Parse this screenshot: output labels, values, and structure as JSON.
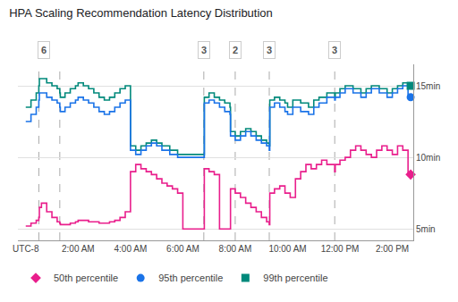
{
  "chart_data": {
    "type": "step",
    "title": "HPA Scaling Recommendation Latency Distribution",
    "xlim": [
      -0.3,
      14.8
    ],
    "xticks": [
      {
        "value": 0,
        "label": "UTC-8"
      },
      {
        "value": 2,
        "label": "2:00 AM"
      },
      {
        "value": 4,
        "label": "4:00 AM"
      },
      {
        "value": 6,
        "label": "6:00 AM"
      },
      {
        "value": 8,
        "label": "8:00 AM"
      },
      {
        "value": 10,
        "label": "10:00 AM"
      },
      {
        "value": 12,
        "label": "12:00 PM"
      },
      {
        "value": 14,
        "label": "2:00 PM"
      }
    ],
    "ylim": [
      4.2,
      16.5
    ],
    "yticks": [
      {
        "value": 5,
        "label": "5min"
      },
      {
        "value": 10,
        "label": "10min"
      },
      {
        "value": 15,
        "label": "15min"
      }
    ],
    "grid": "y",
    "legend": "bottom",
    "vlines": [
      0.5,
      1.3,
      6.8,
      8.0,
      9.3,
      11.8
    ],
    "annotations": [
      {
        "x": 0.7,
        "text": "6"
      },
      {
        "x": 6.8,
        "text": "3"
      },
      {
        "x": 8.0,
        "text": "2"
      },
      {
        "x": 9.3,
        "text": "3"
      },
      {
        "x": 11.8,
        "text": "3"
      }
    ],
    "series": [
      {
        "name": "99th percentile",
        "color": "#00897b",
        "marker": "square",
        "end_marker": {
          "x": 14.7,
          "y": 15.0
        },
        "x": [
          0.0,
          0.2,
          0.4,
          0.5,
          0.52,
          0.6,
          0.8,
          1.0,
          1.2,
          1.3,
          1.32,
          1.5,
          1.7,
          1.9,
          2.0,
          2.2,
          2.4,
          2.6,
          2.8,
          3.0,
          3.2,
          3.4,
          3.6,
          3.8,
          4.0,
          4.2,
          4.4,
          4.6,
          4.8,
          5.0,
          5.2,
          5.5,
          5.8,
          6.0,
          6.2,
          6.4,
          6.6,
          6.8,
          6.82,
          7.0,
          7.2,
          7.4,
          7.6,
          7.8,
          7.82,
          8.0,
          8.2,
          8.4,
          8.6,
          8.8,
          9.0,
          9.2,
          9.3,
          9.32,
          9.5,
          9.7,
          9.9,
          10.0,
          10.2,
          10.5,
          10.8,
          11.0,
          11.2,
          11.5,
          11.8,
          11.82,
          12.0,
          12.2,
          12.5,
          12.8,
          13.0,
          13.2,
          13.5,
          13.8,
          14.0,
          14.2,
          14.4,
          14.6
        ],
        "values": [
          13.5,
          14.0,
          14.5,
          15.0,
          15.5,
          15.5,
          15.2,
          15.0,
          14.8,
          14.5,
          14.2,
          14.5,
          14.8,
          15.0,
          15.2,
          15.0,
          14.8,
          14.5,
          14.2,
          14.0,
          14.2,
          14.5,
          14.8,
          15.0,
          10.8,
          10.5,
          10.8,
          11.0,
          11.2,
          11.0,
          10.8,
          10.5,
          10.2,
          10.2,
          10.2,
          10.2,
          10.2,
          10.2,
          14.2,
          14.5,
          14.2,
          14.0,
          13.8,
          13.5,
          11.8,
          11.5,
          11.8,
          12.0,
          11.8,
          11.5,
          11.2,
          11.0,
          10.8,
          14.0,
          14.2,
          14.0,
          13.8,
          13.5,
          14.0,
          13.8,
          13.5,
          14.0,
          14.2,
          14.5,
          14.2,
          14.5,
          14.8,
          15.0,
          14.8,
          14.5,
          14.8,
          15.0,
          14.8,
          14.5,
          14.8,
          15.0,
          15.2,
          15.0
        ]
      },
      {
        "name": "95th percentile",
        "color": "#1a73e8",
        "marker": "circle",
        "end_marker": {
          "x": 14.7,
          "y": 14.2
        },
        "x": [
          0.0,
          0.2,
          0.4,
          0.5,
          0.52,
          0.6,
          0.8,
          1.0,
          1.2,
          1.3,
          1.32,
          1.5,
          1.7,
          1.9,
          2.0,
          2.2,
          2.4,
          2.6,
          2.8,
          3.0,
          3.2,
          3.4,
          3.6,
          3.8,
          4.0,
          4.2,
          4.4,
          4.6,
          4.8,
          5.0,
          5.2,
          5.5,
          5.8,
          6.0,
          6.2,
          6.4,
          6.6,
          6.8,
          6.82,
          7.0,
          7.2,
          7.4,
          7.6,
          7.8,
          7.82,
          8.0,
          8.2,
          8.4,
          8.6,
          8.8,
          9.0,
          9.2,
          9.3,
          9.32,
          9.5,
          9.7,
          9.9,
          10.0,
          10.2,
          10.5,
          10.8,
          11.0,
          11.2,
          11.5,
          11.8,
          11.82,
          12.0,
          12.2,
          12.5,
          12.8,
          13.0,
          13.2,
          13.5,
          13.8,
          14.0,
          14.2,
          14.4,
          14.6
        ],
        "values": [
          12.5,
          13.0,
          13.5,
          14.0,
          14.5,
          14.5,
          14.2,
          14.0,
          13.8,
          13.5,
          13.2,
          13.5,
          13.8,
          14.0,
          14.2,
          14.0,
          13.8,
          13.5,
          13.2,
          13.0,
          13.2,
          13.5,
          13.8,
          14.0,
          10.5,
          10.2,
          10.5,
          10.8,
          11.0,
          10.8,
          10.5,
          10.2,
          10.0,
          10.0,
          10.0,
          10.0,
          10.0,
          10.0,
          13.8,
          14.0,
          13.8,
          13.5,
          13.2,
          13.0,
          11.5,
          11.2,
          11.5,
          11.8,
          11.5,
          11.2,
          11.0,
          10.8,
          10.5,
          13.5,
          13.8,
          13.5,
          13.2,
          13.0,
          13.5,
          13.2,
          13.0,
          13.5,
          13.8,
          14.2,
          14.0,
          14.2,
          14.5,
          14.8,
          14.5,
          14.2,
          14.5,
          14.8,
          14.5,
          14.2,
          14.5,
          14.8,
          15.0,
          14.2
        ]
      },
      {
        "name": "50th percentile",
        "color": "#e91e8c",
        "marker": "diamond",
        "end_marker": {
          "x": 14.7,
          "y": 8.8
        },
        "x": [
          0.0,
          0.2,
          0.4,
          0.5,
          0.52,
          0.6,
          0.8,
          1.0,
          1.2,
          1.3,
          1.32,
          1.5,
          1.7,
          1.9,
          2.0,
          2.2,
          2.4,
          2.6,
          2.8,
          3.0,
          3.2,
          3.4,
          3.6,
          3.8,
          4.0,
          4.2,
          4.4,
          4.6,
          4.8,
          5.0,
          5.2,
          5.4,
          5.6,
          5.8,
          6.0,
          6.2,
          6.4,
          6.6,
          6.8,
          6.82,
          7.0,
          7.2,
          7.4,
          7.6,
          7.8,
          7.82,
          8.0,
          8.2,
          8.4,
          8.6,
          8.8,
          9.0,
          9.2,
          9.3,
          9.32,
          9.5,
          9.7,
          9.9,
          10.1,
          10.3,
          10.5,
          10.7,
          10.9,
          11.1,
          11.3,
          11.5,
          11.8,
          11.82,
          12.0,
          12.2,
          12.4,
          12.6,
          12.8,
          13.0,
          13.2,
          13.4,
          13.6,
          13.8,
          14.0,
          14.2,
          14.4,
          14.6
        ],
        "values": [
          5.2,
          5.4,
          5.6,
          5.8,
          6.5,
          6.8,
          6.2,
          5.8,
          5.5,
          5.4,
          5.3,
          5.3,
          5.4,
          5.5,
          5.6,
          5.6,
          5.5,
          5.5,
          5.4,
          5.4,
          5.5,
          5.6,
          5.8,
          6.2,
          9.0,
          9.5,
          9.2,
          9.0,
          8.8,
          8.5,
          8.2,
          8.0,
          7.8,
          7.5,
          5.0,
          5.0,
          5.0,
          5.0,
          5.0,
          9.2,
          9.0,
          8.8,
          5.0,
          5.0,
          5.0,
          7.8,
          7.5,
          7.2,
          6.8,
          6.5,
          6.2,
          5.8,
          5.5,
          5.3,
          7.5,
          7.8,
          8.0,
          7.5,
          7.2,
          8.5,
          9.0,
          9.5,
          9.2,
          9.5,
          9.8,
          9.5,
          9.0,
          9.5,
          9.8,
          10.0,
          10.5,
          10.8,
          10.5,
          10.2,
          10.0,
          10.5,
          10.8,
          10.5,
          10.2,
          10.8,
          10.5,
          8.8
        ]
      }
    ]
  }
}
